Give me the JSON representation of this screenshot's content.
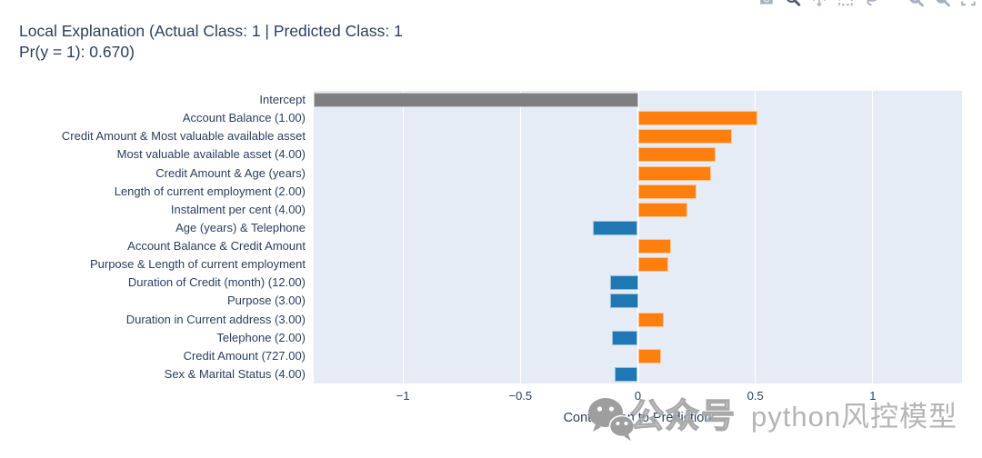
{
  "header": {
    "title_line1": "Local Explanation (Actual Class: 1 | Predicted Class: 1",
    "title_line2": "Pr(y = 1): 0.670)"
  },
  "modebar": {
    "icons": [
      "camera",
      "zoom",
      "pan",
      "box-select",
      "lasso",
      "zoom-in",
      "zoom-out",
      "autoscale"
    ]
  },
  "chart_data": {
    "type": "bar",
    "orientation": "horizontal",
    "title": "Local Explanation (Actual Class: 1 | Predicted Class: 1 Pr(y = 1): 0.670)",
    "xlabel": "Contribution to Prediction",
    "ylabel": "",
    "xlim": [
      -1.38,
      1.38
    ],
    "grid": true,
    "plot_bg": "#e5ecf6",
    "text_color": "#2a3f5f",
    "positive_color": "#ff7f0e",
    "negative_color": "#1f77b4",
    "intercept_color": "#7f7f7f",
    "xticks": [
      {
        "value": -1,
        "label": "−1"
      },
      {
        "value": -0.5,
        "label": "−0.5"
      },
      {
        "value": 0,
        "label": "0"
      },
      {
        "value": 0.5,
        "label": "0.5"
      },
      {
        "value": 1,
        "label": "1"
      }
    ],
    "categories": [
      "Intercept",
      "Account Balance (1.00)",
      "Credit Amount & Most valuable available asset",
      "Most valuable available asset (4.00)",
      "Credit Amount & Age (years)",
      "Length of current employment (2.00)",
      "Instalment per cent (4.00)",
      "Age (years) & Telephone",
      "Account Balance & Credit Amount",
      "Purpose & Length of current employment",
      "Duration of Credit (month) (12.00)",
      "Purpose (3.00)",
      "Duration in Current address (3.00)",
      "Telephone (2.00)",
      "Credit Amount (727.00)",
      "Sex & Marital Status (4.00)"
    ],
    "values": [
      -1.38,
      0.51,
      0.4,
      0.33,
      0.31,
      0.25,
      0.21,
      -0.19,
      0.14,
      0.13,
      -0.12,
      -0.12,
      0.11,
      -0.11,
      0.1,
      -0.1
    ],
    "bar_colors": [
      "#7f7f7f",
      "#ff7f0e",
      "#ff7f0e",
      "#ff7f0e",
      "#ff7f0e",
      "#ff7f0e",
      "#ff7f0e",
      "#1f77b4",
      "#ff7f0e",
      "#ff7f0e",
      "#1f77b4",
      "#1f77b4",
      "#ff7f0e",
      "#1f77b4",
      "#ff7f0e",
      "#1f77b4"
    ]
  },
  "watermark": {
    "badge_text": "公众号",
    "brand_text": "python风控模型"
  }
}
